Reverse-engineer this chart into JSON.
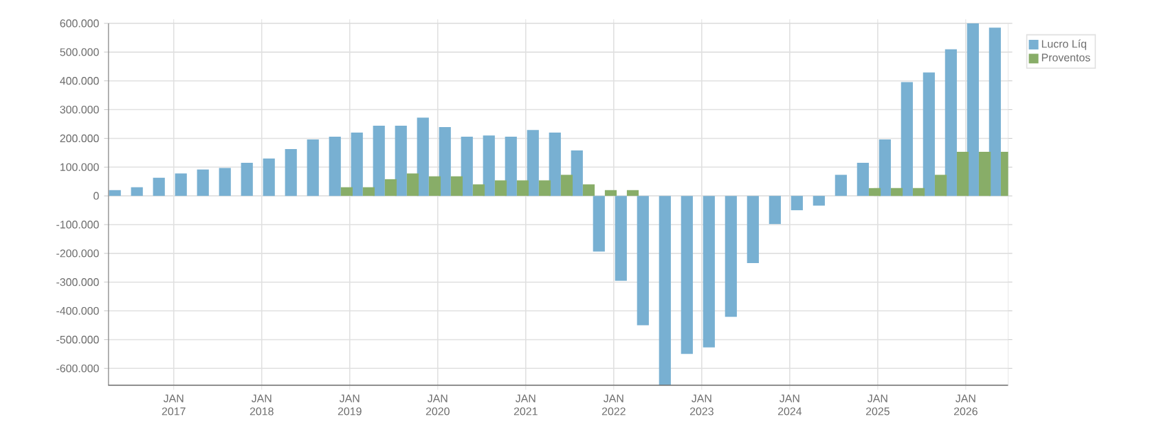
{
  "chart_data": {
    "type": "bar",
    "x": [
      "2016-05-25",
      "2016-08-25",
      "2016-11-25",
      "2017-02-25",
      "2017-05-25",
      "2017-08-25",
      "2017-11-25",
      "2018-02-25",
      "2018-05-25",
      "2018-08-25",
      "2018-11-25",
      "2019-02-25",
      "2019-05-25",
      "2019-08-25",
      "2019-11-25",
      "2020-02-25",
      "2020-05-25",
      "2020-08-25",
      "2020-11-25",
      "2021-02-25",
      "2021-05-25",
      "2021-08-25",
      "2021-11-25",
      "2022-02-25",
      "2022-05-25",
      "2022-08-25",
      "2022-11-25",
      "2023-02-25",
      "2023-05-25",
      "2023-08-25",
      "2023-11-25",
      "2024-02-25",
      "2024-05-25",
      "2024-08-25",
      "2024-11-25",
      "2025-02-25",
      "2025-05-25",
      "2025-08-25",
      "2025-11-25",
      "2026-02-25",
      "2026-05-25"
    ],
    "series": [
      {
        "name": "Lucro Líq",
        "color": "#78b0d2",
        "values": [
          20000,
          30000,
          63000,
          78000,
          92000,
          97000,
          115000,
          130000,
          163000,
          196000,
          206000,
          220000,
          244000,
          244000,
          272000,
          239000,
          206000,
          210000,
          206000,
          229000,
          220000,
          158000,
          -194000,
          -295000,
          -450000,
          -660000,
          -550000,
          -527000,
          -421000,
          -234000,
          -98000,
          -50000,
          -34000,
          73000,
          115000,
          196000,
          396000,
          429000,
          510000,
          600000,
          585000
        ]
      },
      {
        "name": "Proventos",
        "color": "#88ad68",
        "values": [
          0,
          0,
          0,
          0,
          0,
          0,
          0,
          0,
          0,
          0,
          30000,
          30000,
          58000,
          78000,
          68000,
          68000,
          40000,
          54000,
          54000,
          54000,
          73000,
          40000,
          20000,
          20000,
          0,
          0,
          0,
          0,
          0,
          0,
          0,
          0,
          0,
          0,
          27000,
          27000,
          27000,
          73000,
          153000,
          153000,
          153000
        ]
      }
    ],
    "xlim": [
      "2016-04-03",
      "2026-06-25"
    ],
    "xticks": [
      {
        "value": "2017-01",
        "label": "JAN 2017"
      },
      {
        "value": "2018-01",
        "label": "JAN 2018"
      },
      {
        "value": "2019-01",
        "label": "JAN 2019"
      },
      {
        "value": "2020-01",
        "label": "JAN 2020"
      },
      {
        "value": "2021-01",
        "label": "JAN 2021"
      },
      {
        "value": "2022-01",
        "label": "JAN 2022"
      },
      {
        "value": "2023-01",
        "label": "JAN 2023"
      },
      {
        "value": "2024-01",
        "label": "JAN 2024"
      },
      {
        "value": "2025-01",
        "label": "JAN 2025"
      },
      {
        "value": "2026-01",
        "label": "JAN 2026"
      }
    ],
    "ylim": [
      -660000,
      600000
    ],
    "yticks": [
      {
        "value": 600000,
        "label": "600.000"
      },
      {
        "value": 500000,
        "label": "500.000"
      },
      {
        "value": 400000,
        "label": "400.000"
      },
      {
        "value": 300000,
        "label": "300.000"
      },
      {
        "value": 200000,
        "label": "200.000"
      },
      {
        "value": 100000,
        "label": "100.000"
      },
      0,
      {
        "value": -100000,
        "label": "-100.000"
      },
      {
        "value": -200000,
        "label": "-200.000"
      },
      {
        "value": -300000,
        "label": "-300.000"
      },
      {
        "value": -400000,
        "label": "-400.000"
      },
      {
        "value": -500000,
        "label": "-500.000"
      },
      {
        "value": -600000,
        "label": "-600.000"
      }
    ],
    "grid": true,
    "legend": "top right"
  }
}
